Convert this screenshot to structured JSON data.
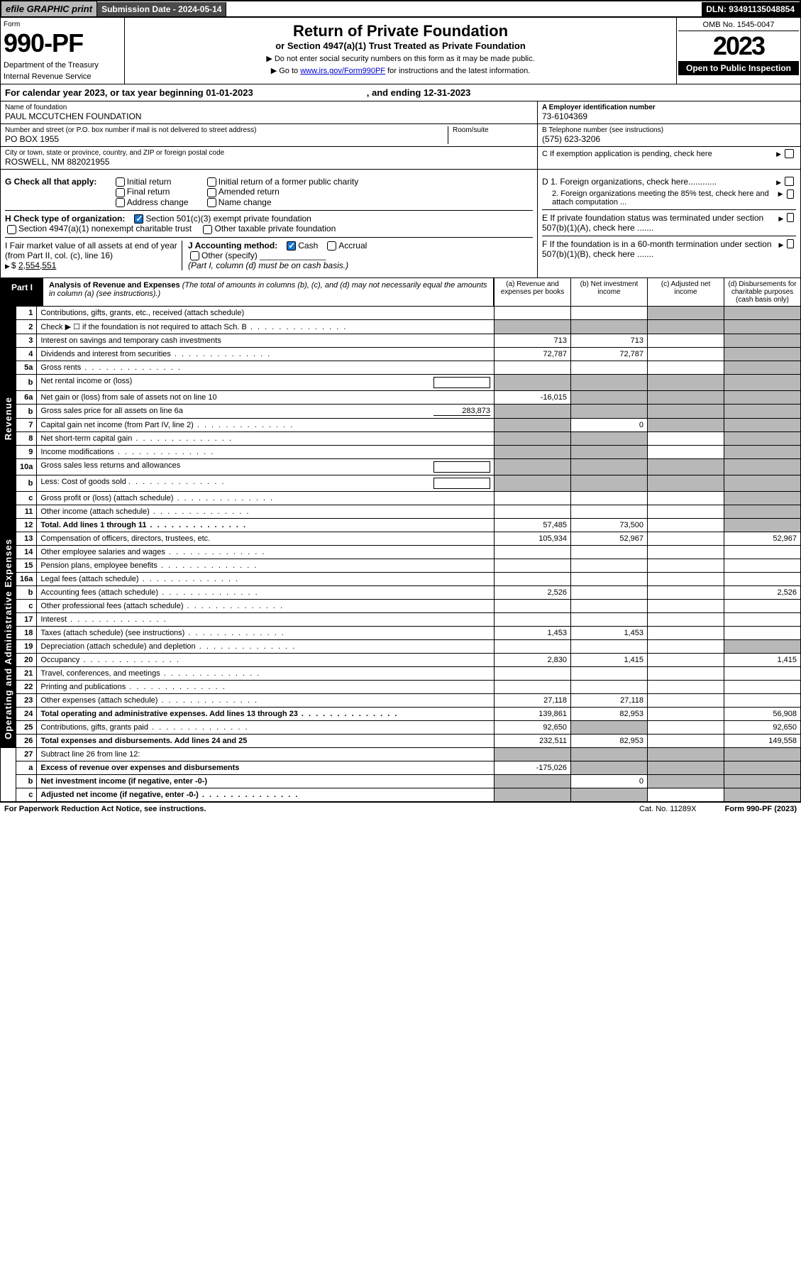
{
  "header": {
    "efile_label": "efile GRAPHIC print",
    "submission_label": "Submission Date - 2024-05-14",
    "dln": "DLN: 93491135048854",
    "omb": "OMB No. 1545-0047",
    "form_no": "990-PF",
    "form_label": "Form",
    "dept": "Department of the Treasury",
    "irs": "Internal Revenue Service",
    "title": "Return of Private Foundation",
    "subtitle": "or Section 4947(a)(1) Trust Treated as Private Foundation",
    "note1": "▶ Do not enter social security numbers on this form as it may be made public.",
    "note2_pre": "▶ Go to ",
    "note2_link": "www.irs.gov/Form990PF",
    "note2_post": " for instructions and the latest information.",
    "year": "2023",
    "open": "Open to Public Inspection"
  },
  "calyear": {
    "text": "For calendar year 2023, or tax year beginning 01-01-2023",
    "ending": ", and ending 12-31-2023"
  },
  "info": {
    "name_lbl": "Name of foundation",
    "name": "PAUL MCCUTCHEN FOUNDATION",
    "addr_lbl": "Number and street (or P.O. box number if mail is not delivered to street address)",
    "addr": "PO BOX 1955",
    "room_lbl": "Room/suite",
    "city_lbl": "City or town, state or province, country, and ZIP or foreign postal code",
    "city": "ROSWELL, NM  882021955",
    "a_lbl": "A Employer identification number",
    "a_val": "73-6104369",
    "b_lbl": "B Telephone number (see instructions)",
    "b_val": "(575) 623-3206",
    "c_lbl": "C If exemption application is pending, check here",
    "d1_lbl": "D 1. Foreign organizations, check here............",
    "d2_lbl": "2. Foreign organizations meeting the 85% test, check here and attach computation ...",
    "e_lbl": "E  If private foundation status was terminated under section 507(b)(1)(A), check here .......",
    "f_lbl": "F  If the foundation is in a 60-month termination under section 507(b)(1)(B), check here .......",
    "g_lbl": "G Check all that apply:",
    "g_opts": [
      "Initial return",
      "Final return",
      "Address change",
      "Initial return of a former public charity",
      "Amended return",
      "Name change"
    ],
    "h_lbl": "H Check type of organization:",
    "h1": "Section 501(c)(3) exempt private foundation",
    "h2": "Section 4947(a)(1) nonexempt charitable trust",
    "h3": "Other taxable private foundation",
    "i_lbl": "I Fair market value of all assets at end of year (from Part II, col. (c), line 16)",
    "i_val": "2,554,551",
    "j_lbl": "J Accounting method:",
    "j_cash": "Cash",
    "j_accrual": "Accrual",
    "j_other": "Other (specify)",
    "j_note": "(Part I, column (d) must be on cash basis.)"
  },
  "part1": {
    "tab": "Part I",
    "title": "Analysis of Revenue and Expenses",
    "title_note": " (The total of amounts in columns (b), (c), and (d) may not necessarily equal the amounts in column (a) (see instructions).)",
    "col_a": "(a)   Revenue and expenses per books",
    "col_b": "(b)   Net investment income",
    "col_c": "(c)   Adjusted net income",
    "col_d": "(d)   Disbursements for charitable purposes (cash basis only)"
  },
  "side": {
    "rev": "Revenue",
    "exp": "Operating and Administrative Expenses"
  },
  "rows": [
    {
      "n": "1",
      "d": "Contributions, gifts, grants, etc., received (attach schedule)",
      "a": "",
      "b": "",
      "c": "",
      "dd": "",
      "bg": false,
      "cg": true,
      "dg": true
    },
    {
      "n": "2",
      "d": "Check ▶ ☐ if the foundation is not required to attach Sch. B",
      "a": "",
      "b": "",
      "c": "",
      "dd": "",
      "ag": true,
      "bg": true,
      "cg": true,
      "dg": true,
      "dots": true
    },
    {
      "n": "3",
      "d": "Interest on savings and temporary cash investments",
      "a": "713",
      "b": "713",
      "c": "",
      "dd": "",
      "dg": true
    },
    {
      "n": "4",
      "d": "Dividends and interest from securities",
      "a": "72,787",
      "b": "72,787",
      "c": "",
      "dd": "",
      "dg": true,
      "dots": true
    },
    {
      "n": "5a",
      "d": "Gross rents",
      "a": "",
      "b": "",
      "c": "",
      "dd": "",
      "dg": true,
      "dots": true
    },
    {
      "n": "b",
      "d": "Net rental income or (loss)",
      "a": "",
      "b": "",
      "c": "",
      "dd": "",
      "ag": true,
      "bg": true,
      "cg": true,
      "dg": true,
      "inline": true
    },
    {
      "n": "6a",
      "d": "Net gain or (loss) from sale of assets not on line 10",
      "a": "-16,015",
      "b": "",
      "c": "",
      "dd": "",
      "bg": true,
      "cg": true,
      "dg": true
    },
    {
      "n": "b",
      "d": "Gross sales price for all assets on line 6a",
      "a": "",
      "b": "",
      "c": "",
      "dd": "",
      "ag": true,
      "bg": true,
      "cg": true,
      "dg": true,
      "inline": true,
      "iv": "283,873"
    },
    {
      "n": "7",
      "d": "Capital gain net income (from Part IV, line 2)",
      "a": "",
      "b": "0",
      "c": "",
      "dd": "",
      "ag": true,
      "cg": true,
      "dg": true,
      "dots": true
    },
    {
      "n": "8",
      "d": "Net short-term capital gain",
      "a": "",
      "b": "",
      "c": "",
      "dd": "",
      "ag": true,
      "bg": true,
      "dg": true,
      "dots": true
    },
    {
      "n": "9",
      "d": "Income modifications",
      "a": "",
      "b": "",
      "c": "",
      "dd": "",
      "ag": true,
      "bg": true,
      "dg": true,
      "dots": true
    },
    {
      "n": "10a",
      "d": "Gross sales less returns and allowances",
      "a": "",
      "b": "",
      "c": "",
      "dd": "",
      "ag": true,
      "bg": true,
      "cg": true,
      "dg": true,
      "inline": true
    },
    {
      "n": "b",
      "d": "Less: Cost of goods sold",
      "a": "",
      "b": "",
      "c": "",
      "dd": "",
      "ag": true,
      "bg": true,
      "cg": true,
      "dg": true,
      "inline": true,
      "dots": true
    },
    {
      "n": "c",
      "d": "Gross profit or (loss) (attach schedule)",
      "a": "",
      "b": "",
      "c": "",
      "dd": "",
      "dg": true,
      "dots": true
    },
    {
      "n": "11",
      "d": "Other income (attach schedule)",
      "a": "",
      "b": "",
      "c": "",
      "dd": "",
      "dg": true,
      "dots": true
    },
    {
      "n": "12",
      "d": "Total. Add lines 1 through 11",
      "a": "57,485",
      "b": "73,500",
      "c": "",
      "dd": "",
      "dg": true,
      "bold": true,
      "dots": true
    },
    {
      "n": "13",
      "d": "Compensation of officers, directors, trustees, etc.",
      "a": "105,934",
      "b": "52,967",
      "c": "",
      "dd": "52,967"
    },
    {
      "n": "14",
      "d": "Other employee salaries and wages",
      "a": "",
      "b": "",
      "c": "",
      "dd": "",
      "dots": true
    },
    {
      "n": "15",
      "d": "Pension plans, employee benefits",
      "a": "",
      "b": "",
      "c": "",
      "dd": "",
      "dots": true
    },
    {
      "n": "16a",
      "d": "Legal fees (attach schedule)",
      "a": "",
      "b": "",
      "c": "",
      "dd": "",
      "dots": true
    },
    {
      "n": "b",
      "d": "Accounting fees (attach schedule)",
      "a": "2,526",
      "b": "",
      "c": "",
      "dd": "2,526",
      "dots": true
    },
    {
      "n": "c",
      "d": "Other professional fees (attach schedule)",
      "a": "",
      "b": "",
      "c": "",
      "dd": "",
      "dots": true
    },
    {
      "n": "17",
      "d": "Interest",
      "a": "",
      "b": "",
      "c": "",
      "dd": "",
      "dots": true
    },
    {
      "n": "18",
      "d": "Taxes (attach schedule) (see instructions)",
      "a": "1,453",
      "b": "1,453",
      "c": "",
      "dd": "",
      "dots": true
    },
    {
      "n": "19",
      "d": "Depreciation (attach schedule) and depletion",
      "a": "",
      "b": "",
      "c": "",
      "dd": "",
      "dg": true,
      "dots": true
    },
    {
      "n": "20",
      "d": "Occupancy",
      "a": "2,830",
      "b": "1,415",
      "c": "",
      "dd": "1,415",
      "dots": true
    },
    {
      "n": "21",
      "d": "Travel, conferences, and meetings",
      "a": "",
      "b": "",
      "c": "",
      "dd": "",
      "dots": true
    },
    {
      "n": "22",
      "d": "Printing and publications",
      "a": "",
      "b": "",
      "c": "",
      "dd": "",
      "dots": true
    },
    {
      "n": "23",
      "d": "Other expenses (attach schedule)",
      "a": "27,118",
      "b": "27,118",
      "c": "",
      "dd": "",
      "dots": true
    },
    {
      "n": "24",
      "d": "Total operating and administrative expenses. Add lines 13 through 23",
      "a": "139,861",
      "b": "82,953",
      "c": "",
      "dd": "56,908",
      "bold": true,
      "dots": true
    },
    {
      "n": "25",
      "d": "Contributions, gifts, grants paid",
      "a": "92,650",
      "b": "",
      "c": "",
      "dd": "92,650",
      "bg": true,
      "dots": true
    },
    {
      "n": "26",
      "d": "Total expenses and disbursements. Add lines 24 and 25",
      "a": "232,511",
      "b": "82,953",
      "c": "",
      "dd": "149,558",
      "bold": true
    },
    {
      "n": "27",
      "d": "Subtract line 26 from line 12:",
      "a": "",
      "b": "",
      "c": "",
      "dd": "",
      "ag": true,
      "bg": true,
      "cg": true,
      "dg": true
    },
    {
      "n": "a",
      "d": "Excess of revenue over expenses and disbursements",
      "a": "-175,026",
      "b": "",
      "c": "",
      "dd": "",
      "bg": true,
      "cg": true,
      "dg": true,
      "bold": true
    },
    {
      "n": "b",
      "d": "Net investment income (if negative, enter -0-)",
      "a": "",
      "b": "0",
      "c": "",
      "dd": "",
      "ag": true,
      "cg": true,
      "dg": true,
      "bold": true
    },
    {
      "n": "c",
      "d": "Adjusted net income (if negative, enter -0-)",
      "a": "",
      "b": "",
      "c": "",
      "dd": "",
      "ag": true,
      "bg": true,
      "dg": true,
      "bold": true,
      "dots": true
    }
  ],
  "foot": {
    "l": "For Paperwork Reduction Act Notice, see instructions.",
    "c": "Cat. No. 11289X",
    "r": "Form 990-PF (2023)"
  }
}
